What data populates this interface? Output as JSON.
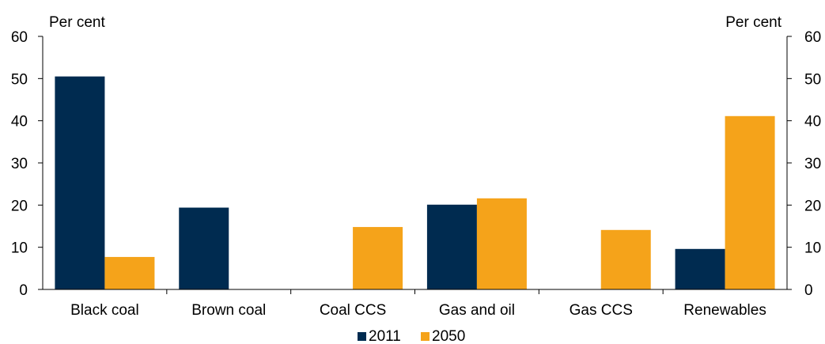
{
  "chart_data": {
    "type": "bar",
    "categories": [
      "Black coal",
      "Brown coal",
      "Coal CCS",
      "Gas and oil",
      "Gas CCS",
      "Renewables"
    ],
    "series": [
      {
        "name": "2011",
        "color": "#002b50",
        "values": [
          50.5,
          19.4,
          0,
          20.1,
          0,
          9.6
        ]
      },
      {
        "name": "2050",
        "color": "#f5a31a",
        "values": [
          7.7,
          0,
          14.8,
          21.6,
          14.1,
          41.1
        ]
      }
    ],
    "y_left_label": "Per cent",
    "y_right_label": "Per cent",
    "ylim": [
      0,
      60
    ],
    "yticks": [
      0,
      10,
      20,
      30,
      40,
      50,
      60
    ],
    "grid": false,
    "legend_position": "bottom-center"
  }
}
